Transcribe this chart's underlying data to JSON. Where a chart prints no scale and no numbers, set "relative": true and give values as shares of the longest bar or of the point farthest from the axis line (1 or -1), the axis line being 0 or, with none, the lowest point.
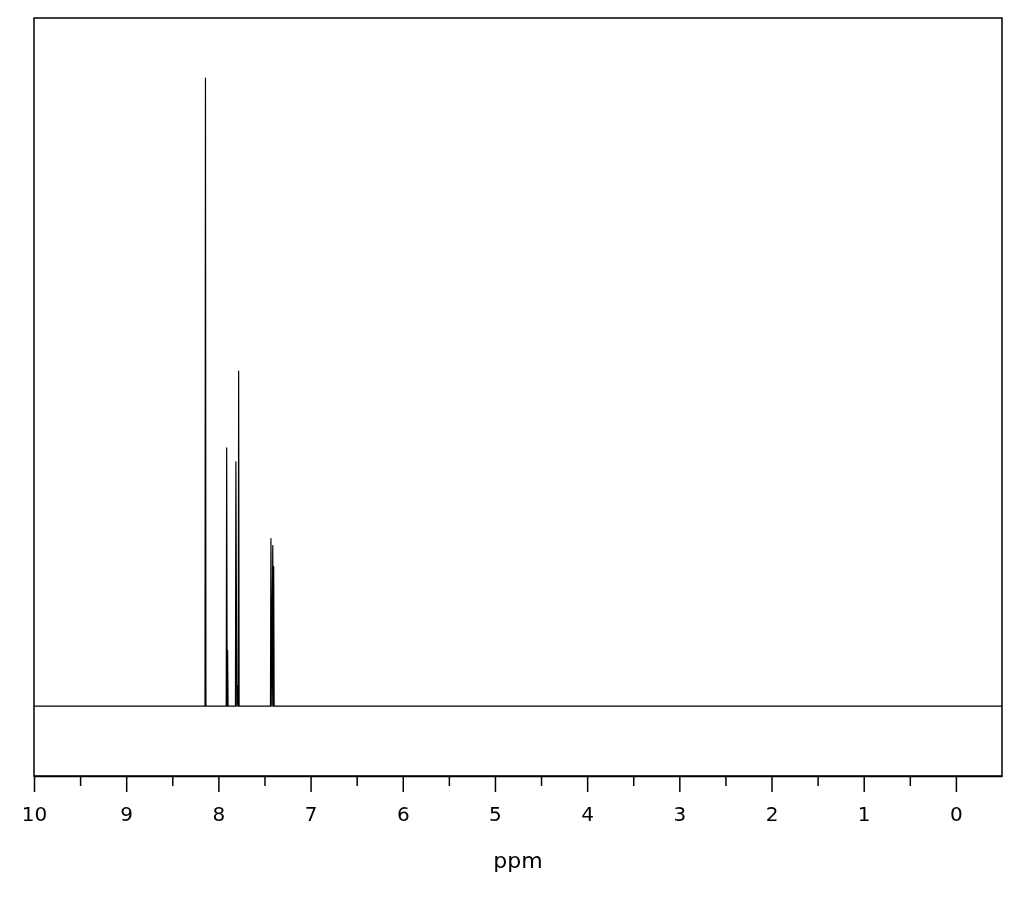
{
  "chart_data": {
    "type": "line",
    "relative": true,
    "xlabel": "ppm",
    "xlim": [
      10,
      -0.5
    ],
    "xticks": [
      10,
      {
        "value": 9.5,
        "label": null
      },
      9,
      {
        "value": 8.5,
        "label": null
      },
      8,
      {
        "value": 7.5,
        "label": null
      },
      7,
      {
        "value": 6.5,
        "label": null
      },
      6,
      {
        "value": 5.5,
        "label": null
      },
      5,
      {
        "value": 4.5,
        "label": null
      },
      4,
      {
        "value": 3.5,
        "label": null
      },
      3,
      {
        "value": 2.5,
        "label": null
      },
      2,
      {
        "value": 1.5,
        "label": null
      },
      1,
      {
        "value": 0.5,
        "label": null
      },
      0
    ],
    "tick_labels": "x",
    "grid": false,
    "marker": "none",
    "line_style": "solid",
    "series": [
      {
        "color": "#000000",
        "x": [
          10,
          8.145,
          8.14,
          8.135,
          7.915,
          7.91,
          7.905,
          7.9,
          7.895,
          7.815,
          7.81,
          7.8,
          7.79,
          7.785,
          7.78,
          7.775,
          7.435,
          7.43,
          7.42,
          7.41,
          7.405,
          7.4,
          7.395,
          -0.5
        ],
        "values": [
          0.1,
          0.1,
          1,
          0.1,
          0.1,
          0.47,
          0.1,
          0.18,
          0.1,
          0.1,
          0.45,
          0.1,
          0.13,
          0.1,
          0.58,
          0.1,
          0.1,
          0.34,
          0.1,
          0.33,
          0.1,
          0.3,
          0.1,
          0.1
        ]
      }
    ]
  }
}
